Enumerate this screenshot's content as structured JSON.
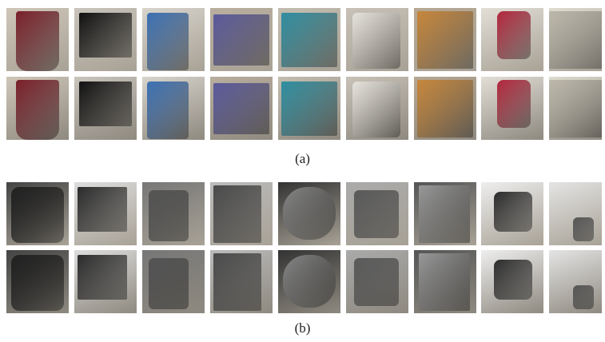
{
  "figure": {
    "panels": [
      {
        "label": "(a)"
      },
      {
        "label": "(b)"
      }
    ]
  }
}
